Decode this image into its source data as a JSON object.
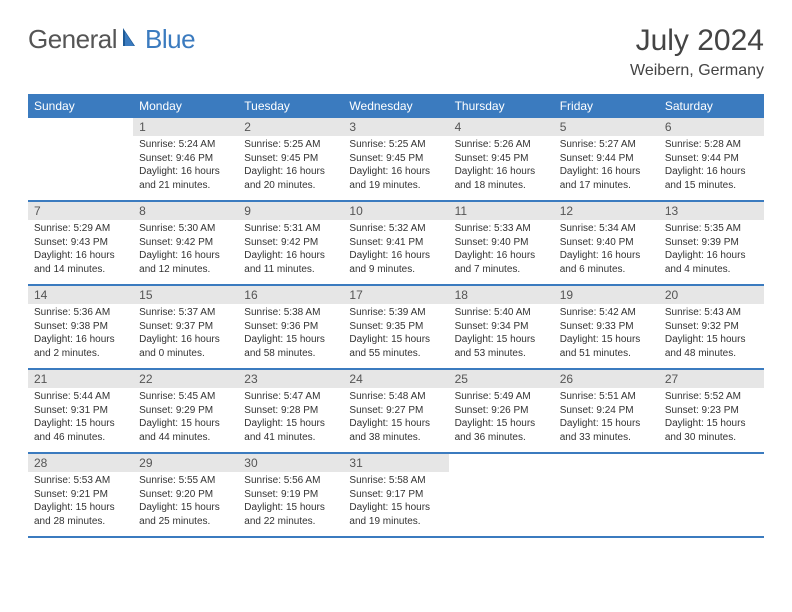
{
  "logo": {
    "text1": "General",
    "text2": "Blue"
  },
  "title": "July 2024",
  "location": "Weibern, Germany",
  "colors": {
    "header_bg": "#3b7bbf",
    "header_text": "#ffffff",
    "daynum_bg": "#e6e6e6",
    "border": "#3b7bbf",
    "text": "#333333",
    "logo_gray": "#555555",
    "logo_blue": "#3b7bbf",
    "background": "#ffffff"
  },
  "typography": {
    "title_fontsize": 30,
    "location_fontsize": 16,
    "weekday_fontsize": 12,
    "daynum_fontsize": 12,
    "body_fontsize": 10
  },
  "layout": {
    "columns": 7,
    "rows": 5,
    "first_day_offset": 1
  },
  "weekdays": [
    "Sunday",
    "Monday",
    "Tuesday",
    "Wednesday",
    "Thursday",
    "Friday",
    "Saturday"
  ],
  "days": [
    {
      "n": 1,
      "sunrise": "5:24 AM",
      "sunset": "9:46 PM",
      "daylight": "16 hours and 21 minutes."
    },
    {
      "n": 2,
      "sunrise": "5:25 AM",
      "sunset": "9:45 PM",
      "daylight": "16 hours and 20 minutes."
    },
    {
      "n": 3,
      "sunrise": "5:25 AM",
      "sunset": "9:45 PM",
      "daylight": "16 hours and 19 minutes."
    },
    {
      "n": 4,
      "sunrise": "5:26 AM",
      "sunset": "9:45 PM",
      "daylight": "16 hours and 18 minutes."
    },
    {
      "n": 5,
      "sunrise": "5:27 AM",
      "sunset": "9:44 PM",
      "daylight": "16 hours and 17 minutes."
    },
    {
      "n": 6,
      "sunrise": "5:28 AM",
      "sunset": "9:44 PM",
      "daylight": "16 hours and 15 minutes."
    },
    {
      "n": 7,
      "sunrise": "5:29 AM",
      "sunset": "9:43 PM",
      "daylight": "16 hours and 14 minutes."
    },
    {
      "n": 8,
      "sunrise": "5:30 AM",
      "sunset": "9:42 PM",
      "daylight": "16 hours and 12 minutes."
    },
    {
      "n": 9,
      "sunrise": "5:31 AM",
      "sunset": "9:42 PM",
      "daylight": "16 hours and 11 minutes."
    },
    {
      "n": 10,
      "sunrise": "5:32 AM",
      "sunset": "9:41 PM",
      "daylight": "16 hours and 9 minutes."
    },
    {
      "n": 11,
      "sunrise": "5:33 AM",
      "sunset": "9:40 PM",
      "daylight": "16 hours and 7 minutes."
    },
    {
      "n": 12,
      "sunrise": "5:34 AM",
      "sunset": "9:40 PM",
      "daylight": "16 hours and 6 minutes."
    },
    {
      "n": 13,
      "sunrise": "5:35 AM",
      "sunset": "9:39 PM",
      "daylight": "16 hours and 4 minutes."
    },
    {
      "n": 14,
      "sunrise": "5:36 AM",
      "sunset": "9:38 PM",
      "daylight": "16 hours and 2 minutes."
    },
    {
      "n": 15,
      "sunrise": "5:37 AM",
      "sunset": "9:37 PM",
      "daylight": "16 hours and 0 minutes."
    },
    {
      "n": 16,
      "sunrise": "5:38 AM",
      "sunset": "9:36 PM",
      "daylight": "15 hours and 58 minutes."
    },
    {
      "n": 17,
      "sunrise": "5:39 AM",
      "sunset": "9:35 PM",
      "daylight": "15 hours and 55 minutes."
    },
    {
      "n": 18,
      "sunrise": "5:40 AM",
      "sunset": "9:34 PM",
      "daylight": "15 hours and 53 minutes."
    },
    {
      "n": 19,
      "sunrise": "5:42 AM",
      "sunset": "9:33 PM",
      "daylight": "15 hours and 51 minutes."
    },
    {
      "n": 20,
      "sunrise": "5:43 AM",
      "sunset": "9:32 PM",
      "daylight": "15 hours and 48 minutes."
    },
    {
      "n": 21,
      "sunrise": "5:44 AM",
      "sunset": "9:31 PM",
      "daylight": "15 hours and 46 minutes."
    },
    {
      "n": 22,
      "sunrise": "5:45 AM",
      "sunset": "9:29 PM",
      "daylight": "15 hours and 44 minutes."
    },
    {
      "n": 23,
      "sunrise": "5:47 AM",
      "sunset": "9:28 PM",
      "daylight": "15 hours and 41 minutes."
    },
    {
      "n": 24,
      "sunrise": "5:48 AM",
      "sunset": "9:27 PM",
      "daylight": "15 hours and 38 minutes."
    },
    {
      "n": 25,
      "sunrise": "5:49 AM",
      "sunset": "9:26 PM",
      "daylight": "15 hours and 36 minutes."
    },
    {
      "n": 26,
      "sunrise": "5:51 AM",
      "sunset": "9:24 PM",
      "daylight": "15 hours and 33 minutes."
    },
    {
      "n": 27,
      "sunrise": "5:52 AM",
      "sunset": "9:23 PM",
      "daylight": "15 hours and 30 minutes."
    },
    {
      "n": 28,
      "sunrise": "5:53 AM",
      "sunset": "9:21 PM",
      "daylight": "15 hours and 28 minutes."
    },
    {
      "n": 29,
      "sunrise": "5:55 AM",
      "sunset": "9:20 PM",
      "daylight": "15 hours and 25 minutes."
    },
    {
      "n": 30,
      "sunrise": "5:56 AM",
      "sunset": "9:19 PM",
      "daylight": "15 hours and 22 minutes."
    },
    {
      "n": 31,
      "sunrise": "5:58 AM",
      "sunset": "9:17 PM",
      "daylight": "15 hours and 19 minutes."
    }
  ],
  "labels": {
    "sunrise": "Sunrise:",
    "sunset": "Sunset:",
    "daylight": "Daylight:"
  }
}
